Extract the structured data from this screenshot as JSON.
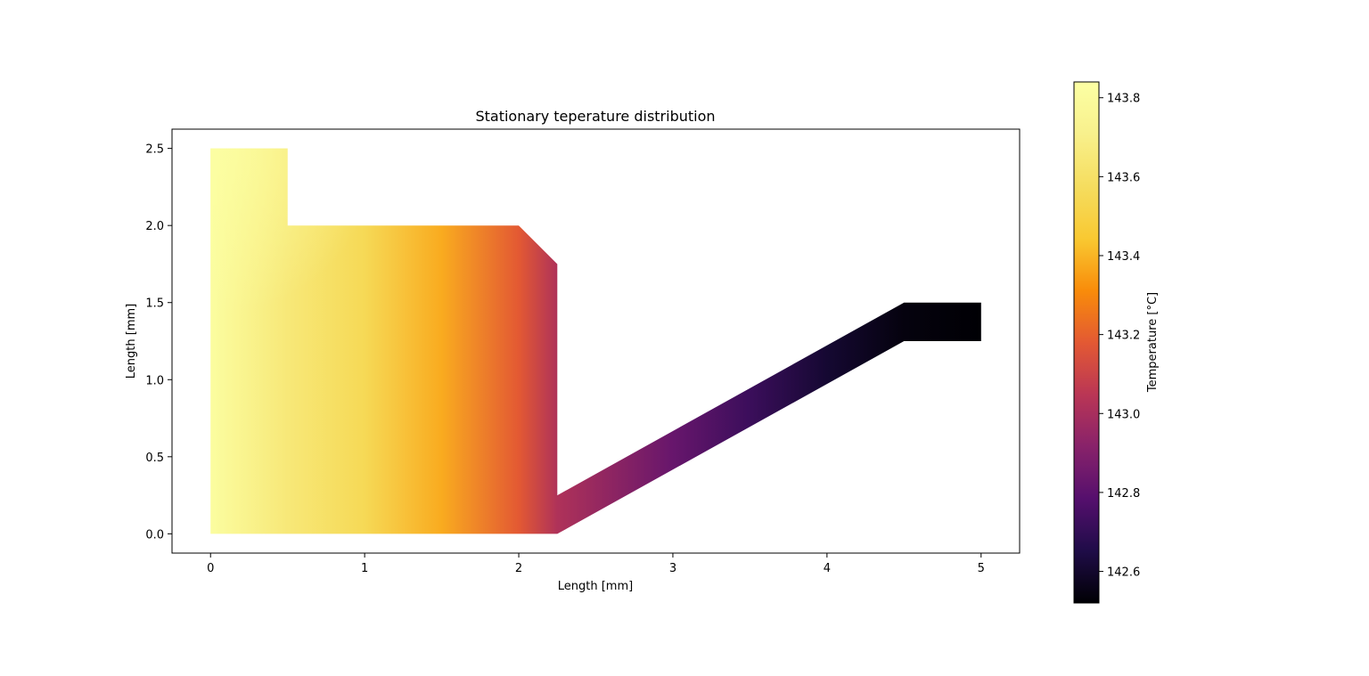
{
  "chart_data": {
    "type": "heatmap",
    "title": "Stationary teperature distribution",
    "xlabel": "Length [mm]",
    "ylabel": "Length [mm]",
    "xlim": [
      -0.25,
      5.25
    ],
    "ylim": [
      -0.125,
      2.625
    ],
    "xticks": [
      0,
      1,
      2,
      3,
      4,
      5
    ],
    "xtick_labels": [
      "0",
      "1",
      "2",
      "3",
      "4",
      "5"
    ],
    "yticks": [
      0.0,
      0.5,
      1.0,
      1.5,
      2.0,
      2.5
    ],
    "ytick_labels": [
      "0.0",
      "0.5",
      "1.0",
      "1.5",
      "2.0",
      "2.5"
    ],
    "grid": false,
    "colormap": "inferno",
    "domain_outline": [
      [
        0,
        0
      ],
      [
        2.25,
        0
      ],
      [
        4.5,
        1.25
      ],
      [
        5,
        1.25
      ],
      [
        5,
        1.5
      ],
      [
        4.5,
        1.5
      ],
      [
        2.25,
        0.25
      ],
      [
        2.25,
        1.75
      ],
      [
        2,
        2
      ],
      [
        0.5,
        2
      ],
      [
        0.5,
        2.5
      ],
      [
        0,
        2.5
      ]
    ],
    "temperature_field": {
      "x": [
        0.0,
        0.5,
        1.0,
        1.5,
        2.0,
        2.25,
        3.0,
        3.5,
        4.0,
        4.5,
        5.0
      ],
      "values": [
        143.82,
        143.65,
        143.55,
        143.38,
        143.18,
        143.02,
        142.83,
        142.72,
        142.61,
        142.54,
        142.52
      ]
    },
    "colorbar": {
      "label": "Temperature [°C]",
      "vmin": 142.52,
      "vmax": 143.84,
      "ticks": [
        142.6,
        142.8,
        143.0,
        143.2,
        143.4,
        143.6,
        143.8
      ],
      "tick_labels": [
        "142.6",
        "142.8",
        "143.0",
        "143.2",
        "143.4",
        "143.6",
        "143.8"
      ]
    }
  }
}
